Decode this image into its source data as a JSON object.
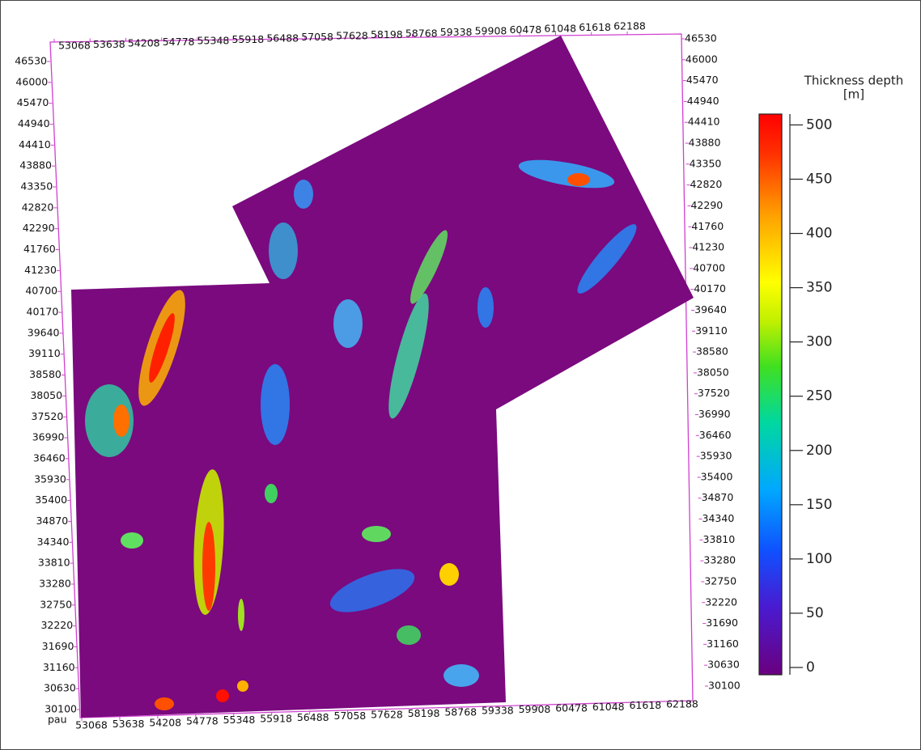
{
  "map": {
    "xticks": [
      53068,
      53638,
      54208,
      54778,
      55348,
      55918,
      56488,
      57058,
      57628,
      58198,
      58768,
      59338,
      59908,
      60478,
      61048,
      61618,
      62188
    ],
    "yticks": [
      46530,
      46000,
      45470,
      44940,
      44410,
      43880,
      43350,
      42820,
      42290,
      41760,
      41230,
      40700,
      40170,
      39640,
      39110,
      38580,
      38050,
      37520,
      36990,
      36460,
      35930,
      35400,
      34870,
      34340,
      33810,
      33280,
      32750,
      32220,
      31690,
      31160,
      30630,
      30100
    ],
    "corner_label": "pau"
  },
  "colorbar": {
    "title": "Thickness depth",
    "unit": "[m]",
    "lim": [
      0,
      510
    ],
    "ticks": [
      0,
      50,
      100,
      150,
      200,
      250,
      300,
      350,
      400,
      450,
      500
    ]
  }
}
